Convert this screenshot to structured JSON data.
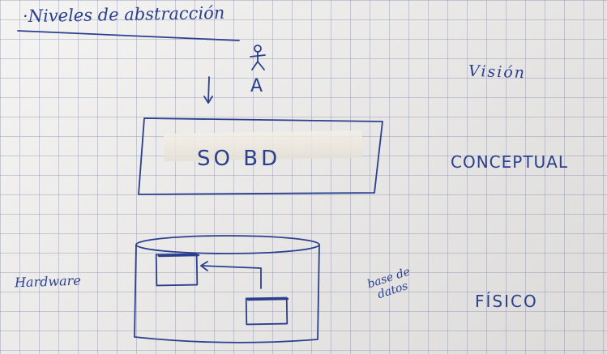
{
  "note": {
    "title": "·Niveles de abstracción",
    "actor_label": "A",
    "levels": {
      "vision": "Visión",
      "conceptual": "CONCEPTUAL",
      "fisico": "FÍSICO"
    },
    "box_label": "SO BD",
    "hardware_label": "Hardware",
    "database_label_line1": "base de",
    "database_label_line2": "datos"
  },
  "colors": {
    "ink": "#2b3f8f",
    "paper": "#e8e7e5",
    "grid": "#787da0"
  }
}
